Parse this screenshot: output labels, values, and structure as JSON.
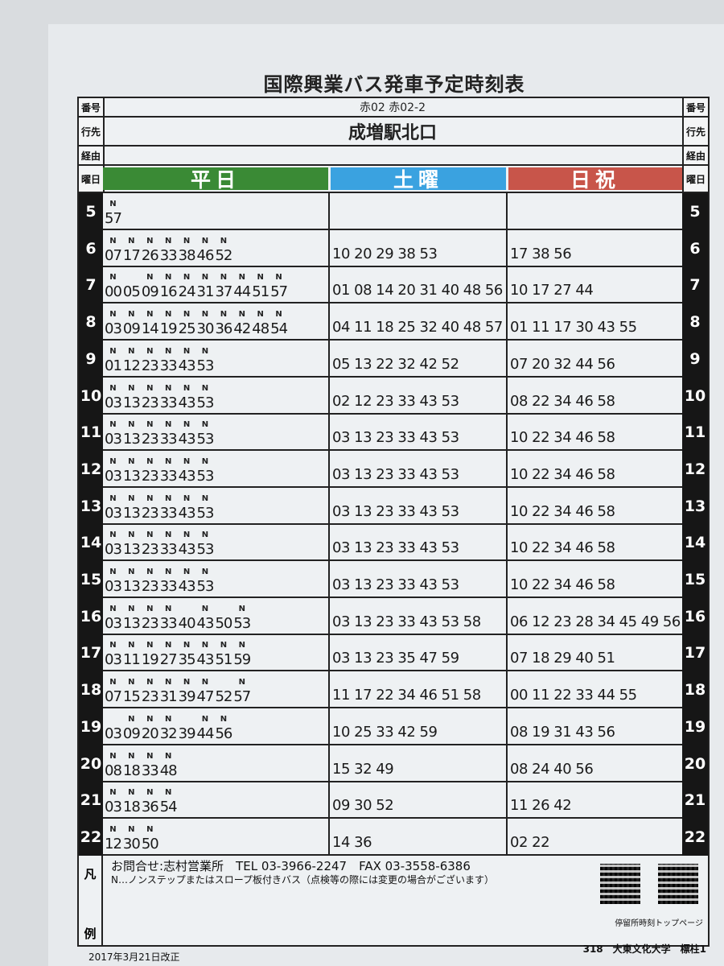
{
  "title": "国際興業バス発車予定時刻表",
  "labels": {
    "number": "番号",
    "destination": "行先",
    "via": "経由",
    "day": "曜日"
  },
  "route_number": "赤02 赤02-2",
  "destination": "成増駅北口",
  "via": "",
  "day_headers": [
    {
      "label": "平日",
      "color": "#3a8a35"
    },
    {
      "label": "土曜",
      "color": "#3aa2e0"
    },
    {
      "label": "日祝",
      "color": "#c8554a"
    }
  ],
  "rows": [
    {
      "hour": "5",
      "weekday": [
        {
          "m": "57",
          "n": true
        }
      ],
      "saturday": "",
      "holiday": ""
    },
    {
      "hour": "6",
      "weekday": [
        {
          "m": "07",
          "n": true
        },
        {
          "m": "17",
          "n": true
        },
        {
          "m": "26",
          "n": true
        },
        {
          "m": "33",
          "n": true
        },
        {
          "m": "38",
          "n": true
        },
        {
          "m": "46",
          "n": true
        },
        {
          "m": "52",
          "n": true
        }
      ],
      "saturday": "10 20 29 38 53",
      "holiday": "17 38 56"
    },
    {
      "hour": "7",
      "weekday": [
        {
          "m": "00",
          "n": true
        },
        {
          "m": "05",
          "n": false
        },
        {
          "m": "09",
          "n": true
        },
        {
          "m": "16",
          "n": true
        },
        {
          "m": "24",
          "n": true
        },
        {
          "m": "31",
          "n": true
        },
        {
          "m": "37",
          "n": true
        },
        {
          "m": "44",
          "n": true
        },
        {
          "m": "51",
          "n": true
        },
        {
          "m": "57",
          "n": true
        }
      ],
      "saturday": "01 08 14 20 31 40 48 56",
      "holiday": "10 17 27 44"
    },
    {
      "hour": "8",
      "weekday": [
        {
          "m": "03",
          "n": true
        },
        {
          "m": "09",
          "n": true
        },
        {
          "m": "14",
          "n": true
        },
        {
          "m": "19",
          "n": true
        },
        {
          "m": "25",
          "n": true
        },
        {
          "m": "30",
          "n": true
        },
        {
          "m": "36",
          "n": true
        },
        {
          "m": "42",
          "n": true
        },
        {
          "m": "48",
          "n": true
        },
        {
          "m": "54",
          "n": true
        }
      ],
      "saturday": "04 11 18 25 32 40 48 57",
      "holiday": "01 11 17 30 43 55"
    },
    {
      "hour": "9",
      "weekday": [
        {
          "m": "01",
          "n": true
        },
        {
          "m": "12",
          "n": true
        },
        {
          "m": "23",
          "n": true
        },
        {
          "m": "33",
          "n": true
        },
        {
          "m": "43",
          "n": true
        },
        {
          "m": "53",
          "n": true
        }
      ],
      "saturday": "05 13 22 32 42 52",
      "holiday": "07 20 32 44 56"
    },
    {
      "hour": "10",
      "weekday": [
        {
          "m": "03",
          "n": true
        },
        {
          "m": "13",
          "n": true
        },
        {
          "m": "23",
          "n": true
        },
        {
          "m": "33",
          "n": true
        },
        {
          "m": "43",
          "n": true
        },
        {
          "m": "53",
          "n": true
        }
      ],
      "saturday": "02 12 23 33 43 53",
      "holiday": "08 22 34 46 58"
    },
    {
      "hour": "11",
      "weekday": [
        {
          "m": "03",
          "n": true
        },
        {
          "m": "13",
          "n": true
        },
        {
          "m": "23",
          "n": true
        },
        {
          "m": "33",
          "n": true
        },
        {
          "m": "43",
          "n": true
        },
        {
          "m": "53",
          "n": true
        }
      ],
      "saturday": "03 13 23 33 43 53",
      "holiday": "10 22 34 46 58"
    },
    {
      "hour": "12",
      "weekday": [
        {
          "m": "03",
          "n": true
        },
        {
          "m": "13",
          "n": true
        },
        {
          "m": "23",
          "n": true
        },
        {
          "m": "33",
          "n": true
        },
        {
          "m": "43",
          "n": true
        },
        {
          "m": "53",
          "n": true
        }
      ],
      "saturday": "03 13 23 33 43 53",
      "holiday": "10 22 34 46 58"
    },
    {
      "hour": "13",
      "weekday": [
        {
          "m": "03",
          "n": true
        },
        {
          "m": "13",
          "n": true
        },
        {
          "m": "23",
          "n": true
        },
        {
          "m": "33",
          "n": true
        },
        {
          "m": "43",
          "n": true
        },
        {
          "m": "53",
          "n": true
        }
      ],
      "saturday": "03 13 23 33 43 53",
      "holiday": "10 22 34 46 58"
    },
    {
      "hour": "14",
      "weekday": [
        {
          "m": "03",
          "n": true
        },
        {
          "m": "13",
          "n": true
        },
        {
          "m": "23",
          "n": true
        },
        {
          "m": "33",
          "n": true
        },
        {
          "m": "43",
          "n": true
        },
        {
          "m": "53",
          "n": true
        }
      ],
      "saturday": "03 13 23 33 43 53",
      "holiday": "10 22 34 46 58"
    },
    {
      "hour": "15",
      "weekday": [
        {
          "m": "03",
          "n": true
        },
        {
          "m": "13",
          "n": true
        },
        {
          "m": "23",
          "n": true
        },
        {
          "m": "33",
          "n": true
        },
        {
          "m": "43",
          "n": true
        },
        {
          "m": "53",
          "n": true
        }
      ],
      "saturday": "03 13 23 33 43 53",
      "holiday": "10 22 34 46 58"
    },
    {
      "hour": "16",
      "weekday": [
        {
          "m": "03",
          "n": true
        },
        {
          "m": "13",
          "n": true
        },
        {
          "m": "23",
          "n": true
        },
        {
          "m": "33",
          "n": true
        },
        {
          "m": "40",
          "n": false
        },
        {
          "m": "43",
          "n": true
        },
        {
          "m": "50",
          "n": false
        },
        {
          "m": "53",
          "n": true
        }
      ],
      "saturday": "03 13 23 33 43 53 58",
      "holiday": "06 12 23 28 34 45 49 56"
    },
    {
      "hour": "17",
      "weekday": [
        {
          "m": "03",
          "n": true
        },
        {
          "m": "11",
          "n": true
        },
        {
          "m": "19",
          "n": true
        },
        {
          "m": "27",
          "n": true
        },
        {
          "m": "35",
          "n": true
        },
        {
          "m": "43",
          "n": true
        },
        {
          "m": "51",
          "n": true
        },
        {
          "m": "59",
          "n": true
        }
      ],
      "saturday": "03 13 23 35 47 59",
      "holiday": "07 18 29 40 51"
    },
    {
      "hour": "18",
      "weekday": [
        {
          "m": "07",
          "n": true
        },
        {
          "m": "15",
          "n": true
        },
        {
          "m": "23",
          "n": true
        },
        {
          "m": "31",
          "n": true
        },
        {
          "m": "39",
          "n": true
        },
        {
          "m": "47",
          "n": true
        },
        {
          "m": "52",
          "n": false
        },
        {
          "m": "57",
          "n": true
        }
      ],
      "saturday": "11 17 22 34 46 51 58",
      "holiday": "00 11 22 33 44 55"
    },
    {
      "hour": "19",
      "weekday": [
        {
          "m": "03",
          "n": false
        },
        {
          "m": "09",
          "n": true
        },
        {
          "m": "20",
          "n": true
        },
        {
          "m": "32",
          "n": true
        },
        {
          "m": "39",
          "n": false
        },
        {
          "m": "44",
          "n": true
        },
        {
          "m": "56",
          "n": true
        }
      ],
      "saturday": "10 25 33 42 59",
      "holiday": "08 19 31 43 56"
    },
    {
      "hour": "20",
      "weekday": [
        {
          "m": "08",
          "n": true
        },
        {
          "m": "18",
          "n": true
        },
        {
          "m": "33",
          "n": true
        },
        {
          "m": "48",
          "n": true
        }
      ],
      "saturday": "15 32 49",
      "holiday": "08 24 40 56"
    },
    {
      "hour": "21",
      "weekday": [
        {
          "m": "03",
          "n": true
        },
        {
          "m": "18",
          "n": true
        },
        {
          "m": "36",
          "n": true
        },
        {
          "m": "54",
          "n": true
        }
      ],
      "saturday": "09 30 52",
      "holiday": "11 26 42"
    },
    {
      "hour": "22",
      "weekday": [
        {
          "m": "12",
          "n": true
        },
        {
          "m": "30",
          "n": true
        },
        {
          "m": "50",
          "n": true
        }
      ],
      "saturday": "14 36",
      "holiday": "02 22"
    }
  ],
  "n_mark": "N",
  "legend": {
    "label_top": "凡",
    "label_bottom": "例",
    "contact": "お問合せ:志村営業所　TEL 03-3966-2247　FAX 03-3558-6386",
    "note": "N…ノンステップまたはスロープ板付きバス（点検等の際には変更の場合がございます）",
    "qr_label": "停留所時刻トップページ"
  },
  "footer": {
    "revised": "2017年3月21日改正",
    "stop": "318　大東文化大学　標柱1"
  }
}
